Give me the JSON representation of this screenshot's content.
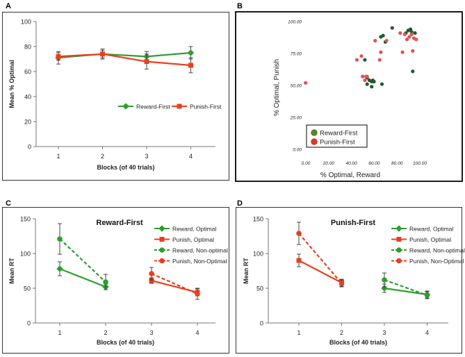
{
  "panels": {
    "A": "A",
    "B": "B",
    "C": "C",
    "D": "D"
  },
  "colors": {
    "green": "#2e9e2e",
    "red": "#e8401c",
    "dark_green": "#1f5a32",
    "scatter_red": "#e25252",
    "olive": "#5f7f2f"
  },
  "chart_data": [
    {
      "panel": "A",
      "type": "line",
      "categories": [
        "1",
        "2",
        "3",
        "4"
      ],
      "ylabel": "Mean % Optimal",
      "xlabel": "Blocks (of 40 trials)",
      "ylim": [
        0,
        100
      ],
      "yticks": [
        "0",
        "20",
        "40",
        "60",
        "80",
        "100"
      ],
      "legend": "center-right",
      "series": [
        {
          "name": "Reward-First",
          "color": "#2e9e2e",
          "marker": "diamond",
          "dash": false,
          "values": [
            71,
            74,
            72,
            75
          ],
          "errors": [
            5,
            3,
            4,
            5
          ]
        },
        {
          "name": "Punish-First",
          "color": "#e8401c",
          "marker": "square",
          "dash": false,
          "values": [
            72,
            74,
            68,
            65
          ],
          "errors": [
            3,
            4,
            6,
            6
          ]
        }
      ]
    },
    {
      "panel": "B",
      "type": "scatter",
      "xlabel": "% Optimal, Reward",
      "ylabel": "% Optimal, Punish",
      "xlim": [
        0,
        100
      ],
      "ylim": [
        0,
        100
      ],
      "xticks": [
        "0.00",
        "20.00",
        "40.00",
        "60.00",
        "80.00",
        "100.00"
      ],
      "yticks": [
        "0.00",
        "25.00",
        "50.00",
        "75.00",
        "100.00"
      ],
      "legend": "bottom-left",
      "series": [
        {
          "name": "Reward-First",
          "color": "#1f5a32",
          "legend_color": "#5f7f2f",
          "x": [
            67,
            69,
            77,
            71,
            89,
            91,
            93,
            94,
            97,
            95,
            55,
            57,
            59,
            61,
            55,
            59,
            53,
            60,
            68
          ],
          "y": [
            88,
            89,
            95,
            84,
            91,
            93,
            94,
            92,
            91,
            61,
            56,
            54,
            53,
            53,
            51,
            49,
            70,
            54,
            51
          ]
        },
        {
          "name": "Punish-First",
          "color": "#e25252",
          "legend_color": "#d43a2a",
          "x": [
            1,
            46,
            50,
            51,
            55,
            66,
            67,
            72,
            86,
            88,
            90,
            92,
            94,
            96,
            98,
            53,
            54,
            62,
            84,
            95
          ],
          "y": [
            52,
            70,
            73,
            57,
            57,
            70,
            76,
            85,
            76,
            90,
            86,
            88,
            90,
            87,
            86,
            54,
            57,
            85,
            91,
            77
          ]
        }
      ]
    },
    {
      "panel": "C",
      "type": "line",
      "title": "Reward-First",
      "categories": [
        "1",
        "2",
        "3",
        "4"
      ],
      "ylabel": "Mean RT",
      "xlabel": "Blocks (of 40 trials)",
      "ylim": [
        0,
        150
      ],
      "yticks": [
        "0",
        "50",
        "100",
        "150"
      ],
      "legend": "top-right",
      "series": [
        {
          "name": "Reward, Optimal",
          "color": "#2e9e2e",
          "marker": "diamond",
          "dash": false,
          "x": [
            1,
            2
          ],
          "values": [
            78,
            52
          ],
          "errors": [
            10,
            4
          ]
        },
        {
          "name": "Punish, Optimal",
          "color": "#e8401c",
          "marker": "square",
          "dash": false,
          "x": [
            3,
            4
          ],
          "values": [
            61,
            44
          ],
          "errors": [
            4,
            5
          ]
        },
        {
          "name": "Reward, Non-optimal",
          "color": "#2e9e2e",
          "marker": "circle",
          "dash": true,
          "x": [
            1,
            2
          ],
          "values": [
            121,
            59
          ],
          "errors": [
            22,
            11
          ]
        },
        {
          "name": "Punish, Non-Optimal",
          "color": "#e8401c",
          "marker": "circle",
          "dash": true,
          "x": [
            3,
            4
          ],
          "values": [
            71,
            42
          ],
          "errors": [
            9,
            8
          ]
        }
      ]
    },
    {
      "panel": "D",
      "type": "line",
      "title": "Punish-First",
      "categories": [
        "1",
        "2",
        "3",
        "4"
      ],
      "ylabel": "Mean RT",
      "xlabel": "Blocks (of 40 trials)",
      "ylim": [
        0,
        150
      ],
      "yticks": [
        "0",
        "50",
        "100",
        "150"
      ],
      "legend": "top-right",
      "series": [
        {
          "name": "Reward, Optimal",
          "color": "#2e9e2e",
          "marker": "diamond",
          "dash": false,
          "x": [
            3,
            4
          ],
          "values": [
            50,
            41
          ],
          "errors": [
            6,
            5
          ]
        },
        {
          "name": "Punish, Optimal",
          "color": "#e8401c",
          "marker": "square",
          "dash": false,
          "x": [
            1,
            2
          ],
          "values": [
            90,
            58
          ],
          "errors": [
            9,
            5
          ]
        },
        {
          "name": "Reward, Non-optimal",
          "color": "#2e9e2e",
          "marker": "circle",
          "dash": true,
          "x": [
            3,
            4
          ],
          "values": [
            62,
            40
          ],
          "errors": [
            10,
            5
          ]
        },
        {
          "name": "Punish, Non-Optimal",
          "color": "#e8401c",
          "marker": "circle",
          "dash": true,
          "x": [
            1,
            2
          ],
          "values": [
            129,
            57
          ],
          "errors": [
            16,
            5
          ]
        }
      ]
    }
  ]
}
